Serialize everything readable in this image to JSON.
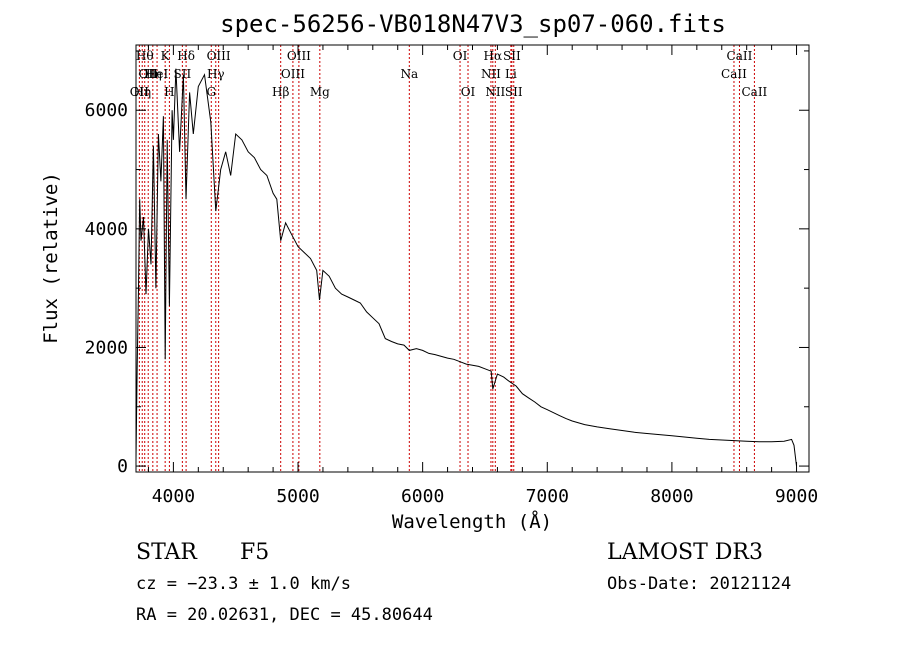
{
  "chart_data": {
    "type": "line",
    "title": "spec-56256-VB018N47V3_sp07-060.fits",
    "xlabel": "Wavelength (Å)",
    "ylabel": "Flux (relative)",
    "xlim": [
      3700,
      9100
    ],
    "ylim": [
      -100,
      7100
    ],
    "xticks": [
      4000,
      5000,
      6000,
      7000,
      8000,
      9000
    ],
    "yticks": [
      0,
      2000,
      4000,
      6000
    ],
    "grid": false,
    "series": [
      {
        "name": "spectrum",
        "x": [
          3700,
          3710,
          3720,
          3730,
          3740,
          3760,
          3780,
          3800,
          3820,
          3840,
          3860,
          3880,
          3900,
          3920,
          3934,
          3950,
          3968,
          3990,
          4000,
          4020,
          4050,
          4080,
          4101,
          4130,
          4160,
          4200,
          4250,
          4300,
          4340,
          4380,
          4420,
          4460,
          4500,
          4550,
          4600,
          4650,
          4700,
          4750,
          4800,
          4830,
          4861,
          4900,
          4950,
          5000,
          5050,
          5100,
          5150,
          5172,
          5200,
          5250,
          5300,
          5350,
          5400,
          5450,
          5500,
          5550,
          5600,
          5650,
          5700,
          5750,
          5800,
          5850,
          5893,
          5950,
          6000,
          6050,
          6100,
          6150,
          6200,
          6250,
          6300,
          6350,
          6400,
          6450,
          6500,
          6550,
          6563,
          6600,
          6650,
          6700,
          6750,
          6800,
          6850,
          6900,
          6950,
          7000,
          7050,
          7100,
          7150,
          7200,
          7300,
          7400,
          7500,
          7600,
          7700,
          7800,
          7900,
          8000,
          8100,
          8200,
          8300,
          8400,
          8500,
          8600,
          8700,
          8800,
          8900,
          8960,
          8980,
          9000
        ],
        "y": [
          100,
          1700,
          3000,
          4500,
          3800,
          4200,
          2900,
          4000,
          3400,
          5400,
          3000,
          5600,
          4800,
          5900,
          1800,
          5500,
          2700,
          6000,
          5500,
          6700,
          5300,
          6600,
          4500,
          6300,
          5600,
          6400,
          6600,
          5800,
          4300,
          5000,
          5300,
          4900,
          5600,
          5500,
          5300,
          5200,
          5000,
          4900,
          4600,
          4500,
          3800,
          4100,
          3900,
          3700,
          3600,
          3500,
          3300,
          2800,
          3300,
          3200,
          3000,
          2900,
          2850,
          2800,
          2750,
          2600,
          2500,
          2400,
          2150,
          2100,
          2060,
          2040,
          1950,
          1980,
          1950,
          1900,
          1880,
          1850,
          1820,
          1800,
          1760,
          1720,
          1700,
          1680,
          1640,
          1600,
          1300,
          1550,
          1500,
          1420,
          1350,
          1220,
          1150,
          1080,
          1000,
          950,
          900,
          850,
          800,
          760,
          700,
          660,
          630,
          600,
          570,
          550,
          530,
          510,
          490,
          470,
          450,
          440,
          430,
          420,
          410,
          410,
          420,
          450,
          350,
          0
        ]
      }
    ],
    "spectral_lines": [
      {
        "wl": 3727,
        "label": "OII",
        "row": 2
      },
      {
        "wl": 3750,
        "label": "Hη",
        "row": 2
      },
      {
        "wl": 3770,
        "label": "Hθ",
        "row": 0
      },
      {
        "wl": 3798,
        "label": "OII",
        "row": 1
      },
      {
        "wl": 3835,
        "label": "Hη",
        "row": 1
      },
      {
        "wl": 3869,
        "label": "HeI",
        "row": 1
      },
      {
        "wl": 3934,
        "label": "K",
        "row": 0
      },
      {
        "wl": 3968,
        "label": "H",
        "row": 2
      },
      {
        "wl": 4072,
        "label": "SII",
        "row": 1
      },
      {
        "wl": 4102,
        "label": "Hδ",
        "row": 0
      },
      {
        "wl": 4304,
        "label": "G",
        "row": 2
      },
      {
        "wl": 4340,
        "label": "Hγ",
        "row": 1
      },
      {
        "wl": 4363,
        "label": "OIII",
        "row": 0
      },
      {
        "wl": 4861,
        "label": "Hβ",
        "row": 2
      },
      {
        "wl": 4959,
        "label": "OIII",
        "row": 1
      },
      {
        "wl": 5007,
        "label": "OIII",
        "row": 0
      },
      {
        "wl": 5175,
        "label": "Mg",
        "row": 2
      },
      {
        "wl": 5893,
        "label": "Na",
        "row": 1
      },
      {
        "wl": 6300,
        "label": "OI",
        "row": 0
      },
      {
        "wl": 6364,
        "label": "OI",
        "row": 2
      },
      {
        "wl": 6548,
        "label": "NII",
        "row": 1
      },
      {
        "wl": 6563,
        "label": "Hα",
        "row": 0
      },
      {
        "wl": 6583,
        "label": "NII",
        "row": 2
      },
      {
        "wl": 6708,
        "label": "Li",
        "row": 1
      },
      {
        "wl": 6716,
        "label": "SII",
        "row": 0
      },
      {
        "wl": 6731,
        "label": "SII",
        "row": 2
      },
      {
        "wl": 8498,
        "label": "CaII",
        "row": 1
      },
      {
        "wl": 8542,
        "label": "CaII",
        "row": 0
      },
      {
        "wl": 8662,
        "label": "CaII",
        "row": 2
      }
    ],
    "annotations": {
      "object_class": "STAR",
      "subclass": "F5",
      "survey": "LAMOST DR3",
      "cz": "cz = −23.3 ± 1.0 km/s",
      "obs_date": "Obs-Date: 20121124",
      "coords": "RA =  20.02631, DEC =  45.80644"
    }
  },
  "colors": {
    "spectrum": "#000000",
    "line_markers": "#cc0000",
    "axes": "#000000",
    "background": "#ffffff"
  }
}
